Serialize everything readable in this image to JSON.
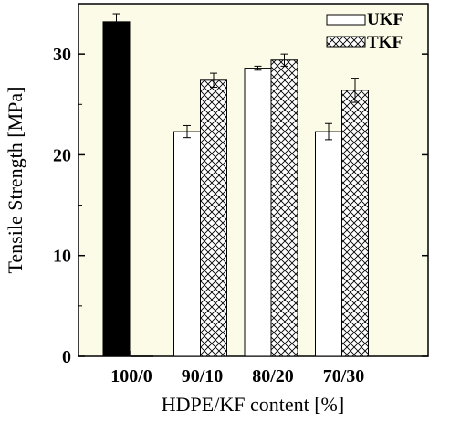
{
  "chart_data": {
    "type": "bar",
    "xlabel": "HDPE/KF content [%]",
    "ylabel": "Tensile Strength [MPa]",
    "ylim": [
      0,
      35
    ],
    "yticks": [
      0,
      10,
      20,
      30
    ],
    "categories": [
      "100/0",
      "90/10",
      "80/20",
      "70/30"
    ],
    "pure_hdpe": {
      "category": "100/0",
      "value": 33.2,
      "error": 0.8,
      "color": "#000000"
    },
    "series": [
      {
        "name": "UKF",
        "values": [
          0,
          22.3,
          28.6,
          22.3
        ],
        "errors": [
          0,
          0.6,
          0.2,
          0.8
        ],
        "fill": "white"
      },
      {
        "name": "TKF",
        "values": [
          0,
          27.4,
          29.4,
          26.4
        ],
        "errors": [
          0,
          0.7,
          0.6,
          1.2
        ],
        "fill": "crosshatch"
      }
    ],
    "legend_position": "top-right",
    "grid": false,
    "background_color": "#fcfbe8"
  }
}
